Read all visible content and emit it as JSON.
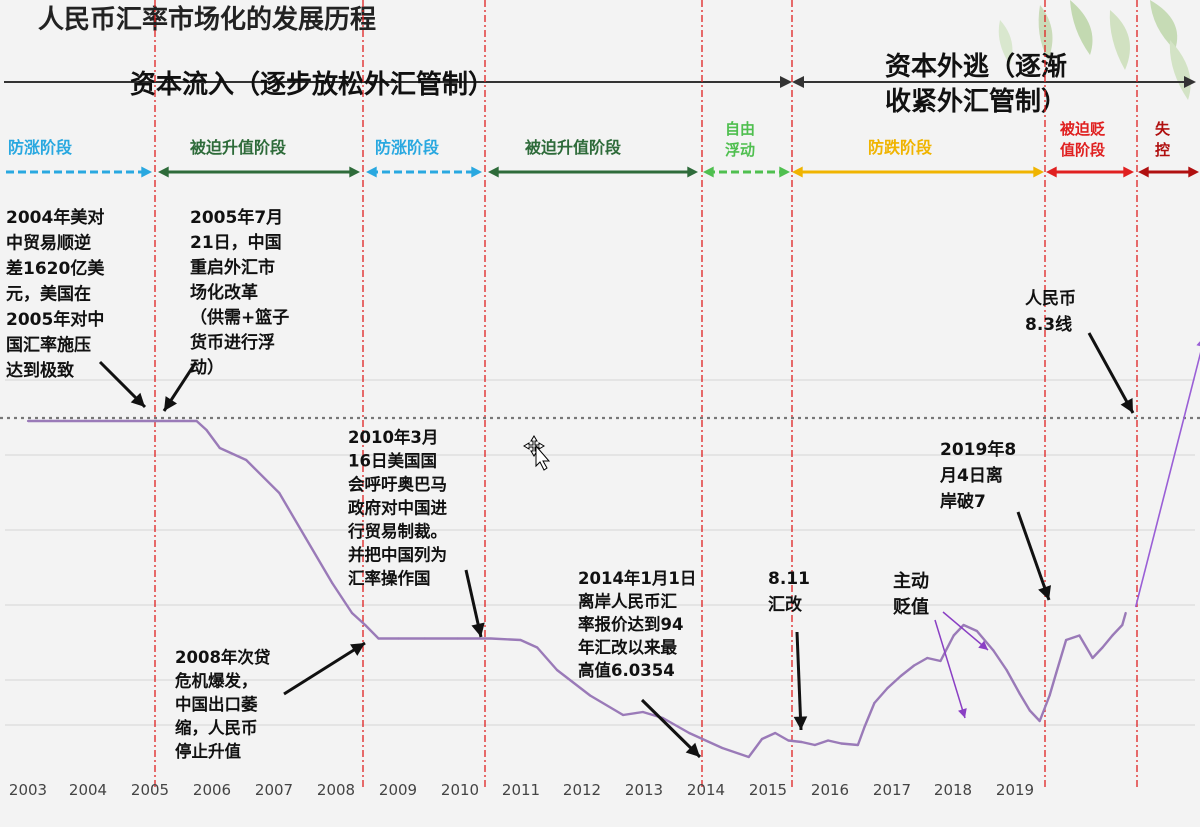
{
  "title": "人民币汇率市场化的发展历程",
  "sections": [
    {
      "label": "资本流入（逐步放松外汇管制）"
    },
    {
      "label_lines": [
        "资本外逃（逐渐",
        "收紧外汇管制）"
      ]
    }
  ],
  "phases": [
    {
      "lines": [
        "防涨阶段"
      ],
      "color": "#29a8e0",
      "style": "dashed"
    },
    {
      "lines": [
        "被迫升值阶段"
      ],
      "color": "#2e6b3a",
      "style": "solid"
    },
    {
      "lines": [
        "防涨阶段"
      ],
      "color": "#29a8e0",
      "style": "dashed"
    },
    {
      "lines": [
        "被迫升值阶段"
      ],
      "color": "#2e6b3a",
      "style": "solid"
    },
    {
      "lines": [
        "自由",
        "浮动"
      ],
      "color": "#4fbf4f",
      "style": "dashed"
    },
    {
      "lines": [
        "防跌阶段"
      ],
      "color": "#f0b400",
      "style": "solid"
    },
    {
      "lines": [
        "被迫贬",
        "值阶段"
      ],
      "color": "#e02020",
      "style": "solid"
    },
    {
      "lines": [
        "失",
        "控"
      ],
      "color": "#b01010",
      "style": "solid"
    }
  ],
  "annotations": [
    {
      "lines": [
        "2004年美对",
        "中贸易顺逆",
        "差1620亿美",
        "元，美国在",
        "2005年对中",
        "国汇率施压",
        "达到极致"
      ]
    },
    {
      "lines": [
        "2005年7月",
        "21日，中国",
        "重启外汇市",
        "场化改革",
        "（供需+篮子",
        "货币进行浮",
        "动）"
      ]
    },
    {
      "lines": [
        "2010年3月",
        "16日美国国",
        "会呼吁奥巴马",
        "政府对中国进",
        "行贸易制裁。",
        "并把中国列为",
        "汇率操作国"
      ]
    },
    {
      "lines": [
        "2008年次贷",
        "危机爆发，",
        "中国出口萎",
        "缩，人民币",
        "停止升值"
      ]
    },
    {
      "lines": [
        "2014年1月1日",
        "离岸人民币汇",
        "率报价达到94",
        "年汇改以来最",
        "高值6.0354"
      ]
    },
    {
      "lines": [
        "8.11",
        "汇改"
      ]
    },
    {
      "lines": [
        "主动",
        "贬值"
      ],
      "color": "#8a3fc4"
    },
    {
      "lines": [
        "2019年8",
        "月4日离",
        "岸破7"
      ]
    },
    {
      "lines": [
        "人民币",
        "8.3线"
      ]
    }
  ],
  "colors": {
    "line": "#9a7ab8",
    "projection": "#9a5fd6",
    "event_line": "#e02020",
    "grid": "#d4d4d4",
    "reference": "#777777",
    "arrow": "#111111"
  },
  "chart_data": {
    "type": "line",
    "title": "人民币汇率市场化的发展历程",
    "xlabel": "",
    "ylabel": "",
    "x_ticks": [
      "2003",
      "2004",
      "2005",
      "2006",
      "2007",
      "2008",
      "2009",
      "2010",
      "2011",
      "2012",
      "2013",
      "2014",
      "2015",
      "2016",
      "2017",
      "2018",
      "2019"
    ],
    "xlim": [
      2003,
      2020.8
    ],
    "ylim": [
      6.0,
      8.3
    ],
    "grid": true,
    "reference_line": {
      "value": 8.3,
      "label": "人民币 8.3线"
    },
    "series": [
      {
        "x": [
          2003.0,
          2005.55,
          2005.7,
          2005.9,
          2006.3,
          2006.8,
          2007.2,
          2007.6,
          2007.9,
          2008.1,
          2008.3,
          2008.6,
          2009.0,
          2009.5,
          2010.0,
          2010.45,
          2010.7,
          2011.0,
          2011.5,
          2012.0,
          2012.3,
          2012.6,
          2013.0,
          2013.5,
          2013.9,
          2014.0,
          2014.1,
          2014.3,
          2014.5,
          2014.7,
          2014.9,
          2015.1,
          2015.3,
          2015.55,
          2015.65,
          2015.8,
          2016.0,
          2016.2,
          2016.4,
          2016.6,
          2016.8,
          2017.0,
          2017.15,
          2017.35,
          2017.6,
          2017.8,
          2018.0,
          2018.15,
          2018.3,
          2018.45,
          2018.55,
          2018.7,
          2018.9,
          2019.1,
          2019.25,
          2019.4,
          2019.55,
          2019.6
        ],
        "values": [
          8.28,
          8.28,
          8.22,
          8.1,
          8.02,
          7.8,
          7.5,
          7.2,
          7.0,
          6.92,
          6.83,
          6.83,
          6.83,
          6.83,
          6.83,
          6.82,
          6.77,
          6.62,
          6.45,
          6.32,
          6.34,
          6.3,
          6.2,
          6.1,
          6.04,
          6.1,
          6.16,
          6.2,
          6.15,
          6.14,
          6.12,
          6.15,
          6.13,
          6.12,
          6.24,
          6.4,
          6.5,
          6.58,
          6.65,
          6.7,
          6.68,
          6.85,
          6.92,
          6.88,
          6.75,
          6.62,
          6.46,
          6.35,
          6.28,
          6.45,
          6.6,
          6.82,
          6.85,
          6.7,
          6.77,
          6.85,
          6.92,
          7.0
        ]
      }
    ],
    "projection": {
      "x": [
        2019.6,
        2020.8
      ],
      "values": [
        7.0,
        8.85
      ]
    }
  }
}
